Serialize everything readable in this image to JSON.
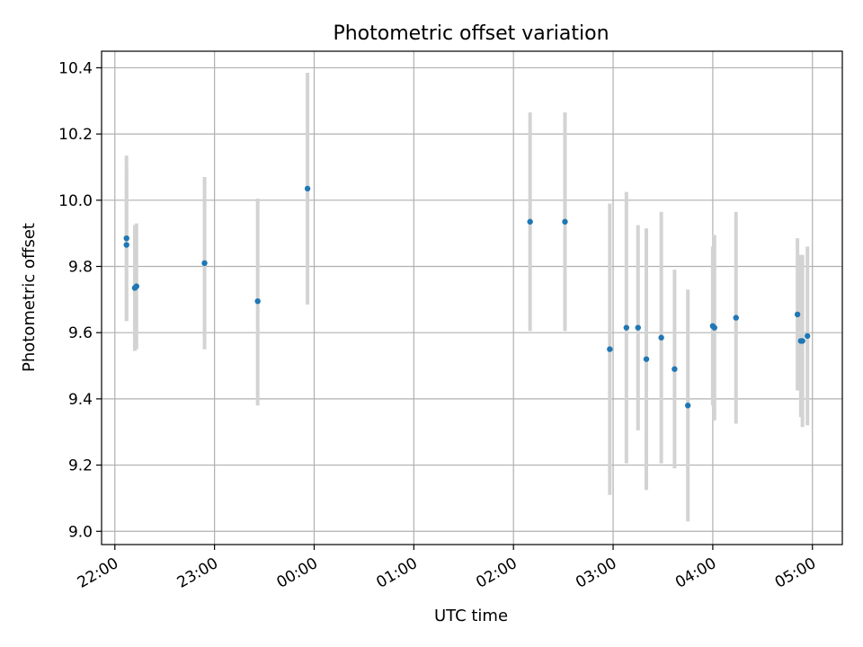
{
  "chart_data": {
    "type": "scatter",
    "title": "Photometric offset variation",
    "xlabel": "UTC time",
    "ylabel": "Photometric offset",
    "xlim": [
      "21:52",
      "05:18"
    ],
    "ylim": [
      8.96,
      10.45
    ],
    "grid": true,
    "xticks": [
      "22:00",
      "23:00",
      "00:00",
      "01:00",
      "02:00",
      "03:00",
      "04:00",
      "05:00"
    ],
    "yticks": [
      "9.0",
      "9.2",
      "9.4",
      "9.6",
      "9.8",
      "10.0",
      "10.2",
      "10.4"
    ],
    "marker_color": "#1f77b4",
    "errorbar_color": "#d3d3d3",
    "points": [
      {
        "t": "22:07",
        "y": 9.885,
        "lo": 9.635,
        "hi": 10.135
      },
      {
        "t": "22:07",
        "y": 9.865,
        "lo": 9.635,
        "hi": 10.095
      },
      {
        "t": "22:12",
        "y": 9.735,
        "lo": 9.545,
        "hi": 9.925
      },
      {
        "t": "22:13",
        "y": 9.74,
        "lo": 9.55,
        "hi": 9.93
      },
      {
        "t": "22:54",
        "y": 9.81,
        "lo": 9.55,
        "hi": 10.07
      },
      {
        "t": "23:26",
        "y": 9.695,
        "lo": 9.38,
        "hi": 10.005
      },
      {
        "t": "23:56",
        "y": 10.035,
        "lo": 9.685,
        "hi": 10.385
      },
      {
        "t": "02:10",
        "y": 9.935,
        "lo": 9.605,
        "hi": 10.265
      },
      {
        "t": "02:31",
        "y": 9.935,
        "lo": 9.605,
        "hi": 10.265
      },
      {
        "t": "02:58",
        "y": 9.55,
        "lo": 9.11,
        "hi": 9.99
      },
      {
        "t": "03:08",
        "y": 9.615,
        "lo": 9.205,
        "hi": 10.025
      },
      {
        "t": "03:15",
        "y": 9.615,
        "lo": 9.305,
        "hi": 9.925
      },
      {
        "t": "03:20",
        "y": 9.52,
        "lo": 9.125,
        "hi": 9.915
      },
      {
        "t": "03:29",
        "y": 9.585,
        "lo": 9.205,
        "hi": 9.965
      },
      {
        "t": "03:37",
        "y": 9.49,
        "lo": 9.19,
        "hi": 9.79
      },
      {
        "t": "03:45",
        "y": 9.38,
        "lo": 9.03,
        "hi": 9.73
      },
      {
        "t": "04:00",
        "y": 9.62,
        "lo": 9.38,
        "hi": 9.86
      },
      {
        "t": "04:01",
        "y": 9.615,
        "lo": 9.335,
        "hi": 9.895
      },
      {
        "t": "04:14",
        "y": 9.645,
        "lo": 9.325,
        "hi": 9.965
      },
      {
        "t": "04:51",
        "y": 9.655,
        "lo": 9.425,
        "hi": 9.885
      },
      {
        "t": "04:53",
        "y": 9.575,
        "lo": 9.345,
        "hi": 9.835
      },
      {
        "t": "04:54",
        "y": 9.575,
        "lo": 9.315,
        "hi": 9.835
      },
      {
        "t": "04:57",
        "y": 9.59,
        "lo": 9.32,
        "hi": 9.86
      }
    ]
  }
}
